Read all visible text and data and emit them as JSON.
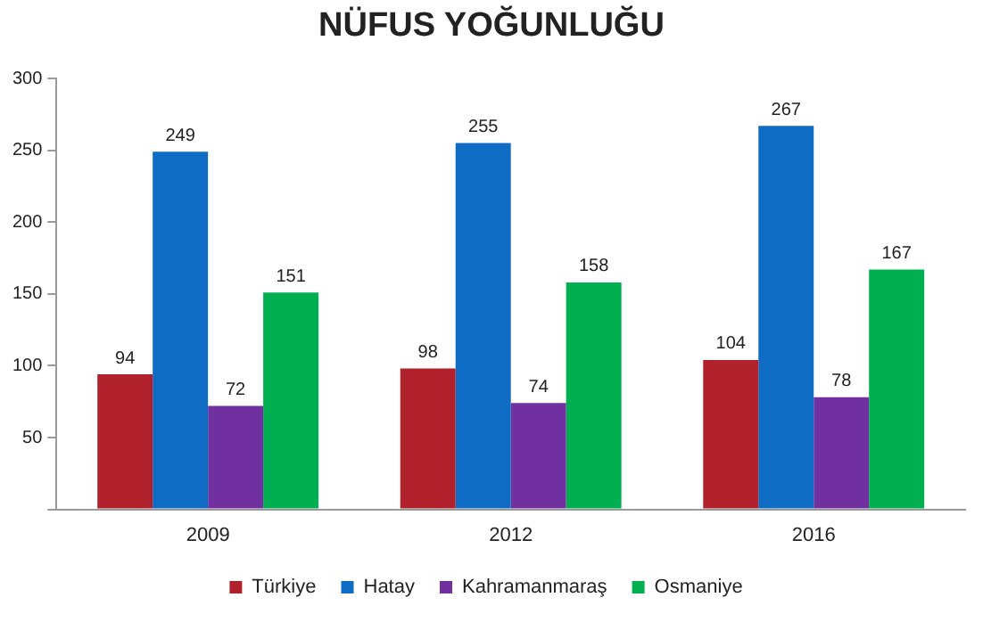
{
  "chart_data": {
    "type": "bar",
    "title": "NÜFUS YOĞUNLUĞU",
    "categories": [
      "2009",
      "2012",
      "2016"
    ],
    "series": [
      {
        "name": "Türkiye",
        "color": "#b0212b",
        "values": [
          94,
          98,
          104
        ]
      },
      {
        "name": "Hatay",
        "color": "#0f6cc4",
        "values": [
          249,
          255,
          267
        ]
      },
      {
        "name": "Kahramanmaraş",
        "color": "#7030a0",
        "values": [
          72,
          74,
          78
        ]
      },
      {
        "name": "Osmaniye",
        "color": "#00b050",
        "values": [
          151,
          158,
          167
        ]
      }
    ],
    "ylim": [
      0,
      300
    ],
    "yticks": [
      {
        "value": 0,
        "label": null
      },
      50,
      100,
      150,
      200,
      250,
      300
    ],
    "grid": false,
    "legend": "bottom",
    "data_labels": true
  }
}
